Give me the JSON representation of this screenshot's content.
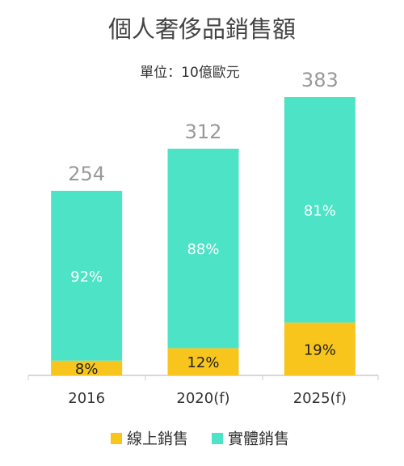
{
  "chart_data": {
    "type": "stacked-bar-percent",
    "title": "個人奢侈品銷售額",
    "subtitle": "單位：10億歐元",
    "categories": [
      "2016",
      "2020(f)",
      "2025(f)"
    ],
    "totals": [
      254,
      312,
      383
    ],
    "series": [
      {
        "name": "線上銷售",
        "color": "#f7c51c",
        "values": [
          8,
          12,
          19
        ],
        "value_labels": [
          "8%",
          "12%",
          "19%"
        ]
      },
      {
        "name": "實體銷售",
        "color": "#4de3c6",
        "values": [
          92,
          88,
          81
        ],
        "value_labels": [
          "92%",
          "88%",
          "81%"
        ]
      }
    ],
    "legend": "bottom"
  }
}
